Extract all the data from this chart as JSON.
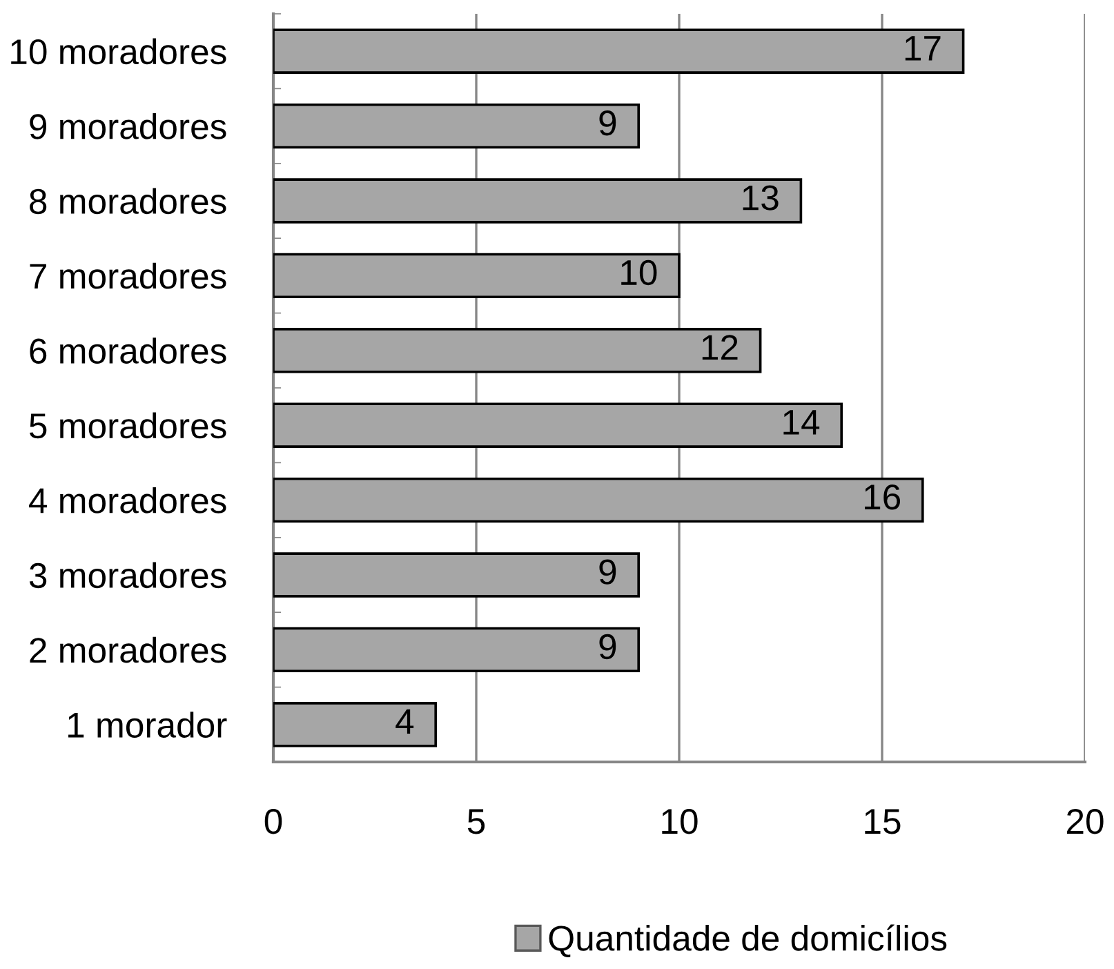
{
  "chart_data": {
    "type": "bar",
    "orientation": "horizontal",
    "categories": [
      "10 moradores",
      "9 moradores",
      "8 moradores",
      "7 moradores",
      "6 moradores",
      "5 moradores",
      "4 moradores",
      "3 moradores",
      "2 moradores",
      "1 morador"
    ],
    "series": [
      {
        "name": "Quantidade de domicílios",
        "color": "#a6a6a6",
        "values": [
          17,
          9,
          13,
          10,
          12,
          14,
          16,
          9,
          9,
          4
        ]
      }
    ],
    "xlim": [
      0,
      20
    ],
    "xticks": [
      0,
      5,
      10,
      15,
      20
    ],
    "grid": "x",
    "legend": "bottom",
    "data_labels": true
  }
}
